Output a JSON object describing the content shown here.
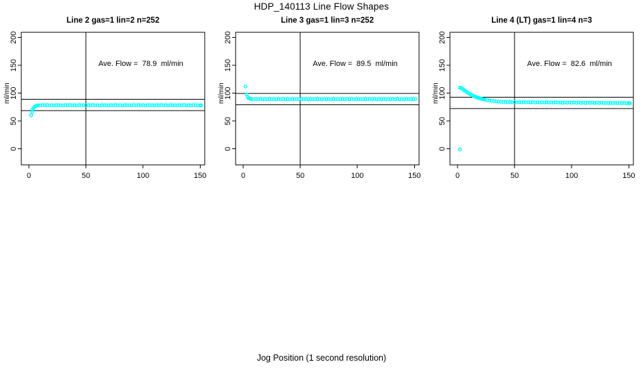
{
  "page": {
    "title": "HDP_140113  Line Flow Shapes",
    "xlabel": "Jog Position (1 second resolution)"
  },
  "colors": {
    "background": "#ffffff",
    "points": "#00ffff",
    "axis": "#000000"
  },
  "chart_data": [
    {
      "type": "scatter",
      "title": "Line 2 gas=1 lin=2 n=252",
      "annotation": "Ave. Flow =  78.9  ml/min",
      "ave_flow_ml_min": 78.9,
      "n": 252,
      "ylabel": "ml/min",
      "x_ticks": [
        0,
        50,
        100,
        150
      ],
      "y_ticks": [
        0,
        50,
        100,
        150,
        200
      ],
      "xlim": [
        -6,
        154
      ],
      "ylim": [
        -28,
        210
      ],
      "vline_x": 50,
      "hlines": [
        88.9,
        68.9
      ],
      "grid": false,
      "points": [
        [
          2,
          60.5
        ],
        [
          3,
          66.5
        ],
        [
          3,
          70
        ],
        [
          4,
          73
        ],
        [
          5,
          75.5
        ],
        [
          6,
          77
        ],
        [
          7,
          77.8
        ],
        [
          8,
          78.6
        ],
        [
          10,
          78.2
        ],
        [
          12,
          78.9
        ],
        [
          14,
          78.4
        ],
        [
          16,
          79
        ],
        [
          18,
          78.3
        ],
        [
          20,
          78.7
        ],
        [
          22,
          78.1
        ],
        [
          24,
          78.8
        ],
        [
          26,
          78.5
        ],
        [
          28,
          78.6
        ],
        [
          30,
          78.2
        ],
        [
          32,
          78.9
        ],
        [
          34,
          78.4
        ],
        [
          36,
          79
        ],
        [
          38,
          78.3
        ],
        [
          40,
          78.7
        ],
        [
          42,
          78.1
        ],
        [
          44,
          78.8
        ],
        [
          46,
          78.5
        ],
        [
          48,
          78.6
        ],
        [
          50,
          78.2
        ],
        [
          52,
          78.9
        ],
        [
          54,
          78.4
        ],
        [
          56,
          79
        ],
        [
          58,
          78.3
        ],
        [
          60,
          78.7
        ],
        [
          62,
          78.1
        ],
        [
          64,
          78.8
        ],
        [
          66,
          78.5
        ],
        [
          68,
          78.6
        ],
        [
          70,
          78.2
        ],
        [
          72,
          78.9
        ],
        [
          74,
          78.4
        ],
        [
          76,
          79
        ],
        [
          78,
          78.3
        ],
        [
          80,
          78.7
        ],
        [
          82,
          78.1
        ],
        [
          84,
          78.8
        ],
        [
          86,
          78.5
        ],
        [
          88,
          78.6
        ],
        [
          90,
          78.2
        ],
        [
          92,
          78.9
        ],
        [
          94,
          78.4
        ],
        [
          96,
          79
        ],
        [
          98,
          78.3
        ],
        [
          100,
          78.7
        ],
        [
          102,
          78.1
        ],
        [
          104,
          78.8
        ],
        [
          106,
          78.5
        ],
        [
          108,
          78.6
        ],
        [
          110,
          78.2
        ],
        [
          112,
          78.9
        ],
        [
          114,
          78.4
        ],
        [
          116,
          79
        ],
        [
          118,
          78.3
        ],
        [
          120,
          78.7
        ],
        [
          122,
          78.1
        ],
        [
          124,
          78.8
        ],
        [
          126,
          78.5
        ],
        [
          128,
          78.6
        ],
        [
          130,
          78.2
        ],
        [
          132,
          78.9
        ],
        [
          134,
          78.4
        ],
        [
          136,
          79
        ],
        [
          138,
          78.3
        ],
        [
          140,
          78.7
        ],
        [
          142,
          78.1
        ],
        [
          144,
          78.8
        ],
        [
          146,
          78.5
        ],
        [
          148,
          78.6
        ],
        [
          150,
          78.2
        ],
        [
          151,
          78.5
        ]
      ]
    },
    {
      "type": "scatter",
      "title": "Line 3 gas=1 lin=3 n=252",
      "annotation": "Ave. Flow =  89.5  ml/min",
      "ave_flow_ml_min": 89.5,
      "n": 252,
      "ylabel": "ml/min",
      "x_ticks": [
        0,
        50,
        100,
        150
      ],
      "y_ticks": [
        0,
        50,
        100,
        150,
        200
      ],
      "xlim": [
        -6,
        154
      ],
      "ylim": [
        -28,
        210
      ],
      "vline_x": 50,
      "hlines": [
        99.5,
        79.5
      ],
      "grid": false,
      "points": [
        [
          2,
          112
        ],
        [
          3,
          98
        ],
        [
          4,
          93
        ],
        [
          5,
          91
        ],
        [
          6,
          90.2
        ],
        [
          7,
          89.7
        ],
        [
          9,
          89.2
        ],
        [
          11,
          90
        ],
        [
          13,
          89.4
        ],
        [
          15,
          89.9
        ],
        [
          17,
          89.1
        ],
        [
          19,
          89.6
        ],
        [
          21,
          89.3
        ],
        [
          23,
          89.8
        ],
        [
          25,
          89.5
        ],
        [
          27,
          89.7
        ],
        [
          29,
          89.2
        ],
        [
          31,
          90
        ],
        [
          33,
          89.4
        ],
        [
          35,
          89.9
        ],
        [
          37,
          89.1
        ],
        [
          39,
          89.6
        ],
        [
          41,
          89.3
        ],
        [
          43,
          89.8
        ],
        [
          45,
          89.5
        ],
        [
          47,
          89.7
        ],
        [
          49,
          89.2
        ],
        [
          51,
          90
        ],
        [
          53,
          89.4
        ],
        [
          55,
          89.9
        ],
        [
          57,
          89.1
        ],
        [
          59,
          89.6
        ],
        [
          61,
          89.3
        ],
        [
          63,
          89.8
        ],
        [
          65,
          89.5
        ],
        [
          67,
          89.7
        ],
        [
          69,
          89.2
        ],
        [
          71,
          90
        ],
        [
          73,
          89.4
        ],
        [
          75,
          89.9
        ],
        [
          77,
          89.1
        ],
        [
          79,
          89.6
        ],
        [
          81,
          89.3
        ],
        [
          83,
          89.8
        ],
        [
          85,
          89.5
        ],
        [
          87,
          89.7
        ],
        [
          89,
          89.2
        ],
        [
          91,
          90
        ],
        [
          93,
          89.4
        ],
        [
          95,
          89.9
        ],
        [
          97,
          89.1
        ],
        [
          99,
          89.6
        ],
        [
          101,
          89.3
        ],
        [
          103,
          89.8
        ],
        [
          105,
          89.5
        ],
        [
          107,
          89.7
        ],
        [
          109,
          89.2
        ],
        [
          111,
          90
        ],
        [
          113,
          89.4
        ],
        [
          115,
          89.9
        ],
        [
          117,
          89.1
        ],
        [
          119,
          89.6
        ],
        [
          121,
          89.3
        ],
        [
          123,
          89.8
        ],
        [
          125,
          89.5
        ],
        [
          127,
          89.7
        ],
        [
          129,
          89.2
        ],
        [
          131,
          90
        ],
        [
          133,
          89.4
        ],
        [
          135,
          89.9
        ],
        [
          137,
          89.1
        ],
        [
          139,
          89.6
        ],
        [
          141,
          89.3
        ],
        [
          143,
          89.8
        ],
        [
          145,
          89.5
        ],
        [
          147,
          89.7
        ],
        [
          149,
          89.2
        ],
        [
          151,
          89.6
        ]
      ]
    },
    {
      "type": "scatter",
      "title": "Line 4 (LT) gas=1 lin=4 n=3",
      "annotation": "Ave. Flow =  82.6  ml/min",
      "ave_flow_ml_min": 82.6,
      "n": 3,
      "ylabel": "ml/min",
      "x_ticks": [
        0,
        50,
        100,
        150
      ],
      "y_ticks": [
        0,
        50,
        100,
        150,
        200
      ],
      "xlim": [
        -6,
        154
      ],
      "ylim": [
        -28,
        210
      ],
      "vline_x": 50,
      "hlines": [
        92.6,
        72.6
      ],
      "grid": false,
      "points": [
        [
          2,
          -1
        ],
        [
          2,
          110
        ],
        [
          3,
          109.5
        ],
        [
          4,
          108.5
        ],
        [
          5,
          107
        ],
        [
          6,
          105.5
        ],
        [
          7,
          104
        ],
        [
          8,
          102.5
        ],
        [
          9,
          101
        ],
        [
          10,
          99.8
        ],
        [
          11,
          98.5
        ],
        [
          12,
          97.3
        ],
        [
          13,
          96.2
        ],
        [
          14,
          95.2
        ],
        [
          15,
          94.3
        ],
        [
          16,
          93.4
        ],
        [
          17,
          92.6
        ],
        [
          18,
          91.9
        ],
        [
          19,
          91.2
        ],
        [
          20,
          90.6
        ],
        [
          21,
          90
        ],
        [
          22,
          89.5
        ],
        [
          23,
          89
        ],
        [
          24,
          88.5
        ],
        [
          26,
          87.7
        ],
        [
          28,
          87
        ],
        [
          30,
          86.4
        ],
        [
          32,
          85.9
        ],
        [
          34,
          85.4
        ],
        [
          36,
          85
        ],
        [
          38,
          84.7
        ],
        [
          40,
          84.4
        ],
        [
          42,
          84.5
        ],
        [
          44,
          84
        ],
        [
          46,
          84.5
        ],
        [
          48,
          83.8
        ],
        [
          50,
          84.2
        ],
        [
          52,
          83.6
        ],
        [
          54,
          84.2
        ],
        [
          56,
          83.8
        ],
        [
          58,
          84.3
        ],
        [
          60,
          83.6
        ],
        [
          62,
          84.1
        ],
        [
          64,
          83.6
        ],
        [
          66,
          84.2
        ],
        [
          68,
          83.4
        ],
        [
          70,
          83.8
        ],
        [
          72,
          83.3
        ],
        [
          74,
          83.8
        ],
        [
          76,
          83.5
        ],
        [
          78,
          83.9
        ],
        [
          80,
          83.3
        ],
        [
          82,
          83.8
        ],
        [
          84,
          83.2
        ],
        [
          86,
          83.8
        ],
        [
          88,
          83.1
        ],
        [
          90,
          83.4
        ],
        [
          92,
          82.9
        ],
        [
          94,
          83.5
        ],
        [
          96,
          83.1
        ],
        [
          98,
          83.5
        ],
        [
          100,
          82.9
        ],
        [
          102,
          83.4
        ],
        [
          104,
          82.9
        ],
        [
          106,
          83.5
        ],
        [
          108,
          82.7
        ],
        [
          110,
          83.1
        ],
        [
          112,
          82.5
        ],
        [
          114,
          83.1
        ],
        [
          116,
          82.8
        ],
        [
          118,
          83.2
        ],
        [
          120,
          82.6
        ],
        [
          122,
          83.1
        ],
        [
          124,
          82.5
        ],
        [
          126,
          83.1
        ],
        [
          128,
          82.4
        ],
        [
          130,
          82.7
        ],
        [
          132,
          82.2
        ],
        [
          134,
          82.7
        ],
        [
          136,
          82.4
        ],
        [
          138,
          82.8
        ],
        [
          140,
          82.2
        ],
        [
          142,
          82.7
        ],
        [
          144,
          82.2
        ],
        [
          146,
          82.7
        ],
        [
          148,
          82
        ],
        [
          150,
          82.4
        ],
        [
          151,
          82.3
        ]
      ]
    }
  ]
}
